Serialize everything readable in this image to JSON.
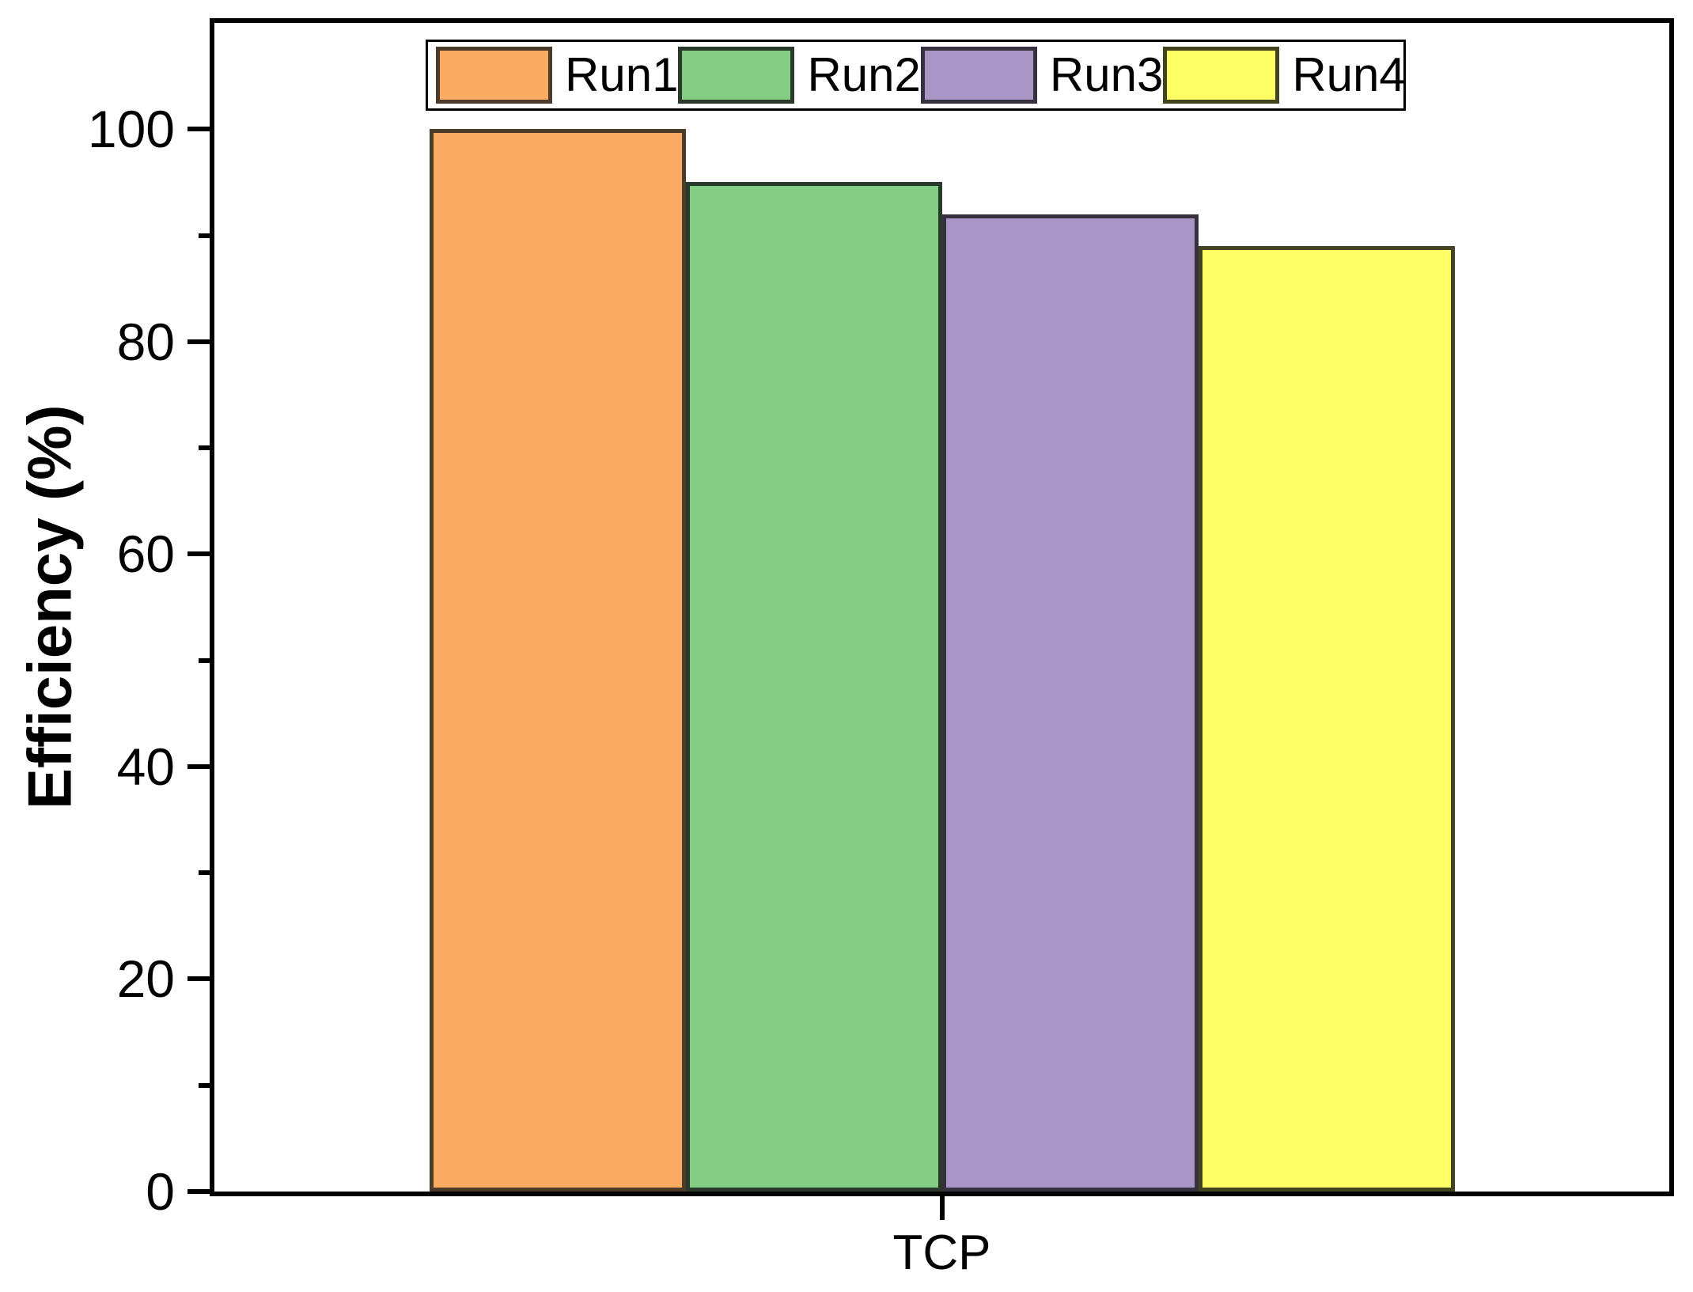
{
  "chart_data": {
    "type": "bar",
    "categories": [
      "TCP"
    ],
    "series": [
      {
        "name": "Run1",
        "values": [
          100
        ],
        "fill": "#FBAC62",
        "edge": "#4D3B2A"
      },
      {
        "name": "Run2",
        "values": [
          95
        ],
        "fill": "#84CB84",
        "edge": "#2A3A2A"
      },
      {
        "name": "Run3",
        "values": [
          92
        ],
        "fill": "#A996C7",
        "edge": "#37303F"
      },
      {
        "name": "Run4",
        "values": [
          89
        ],
        "fill": "#FDFD66",
        "edge": "#43431F"
      }
    ],
    "title": "",
    "xlabel": "TCP",
    "ylabel": "Efficiency (%)",
    "ylim": [
      0,
      110
    ],
    "yticks_major": [
      0,
      20,
      40,
      60,
      80,
      100
    ],
    "yticks_minor": [
      10,
      30,
      50,
      70,
      90
    ],
    "grid": false,
    "legend_position": "top-center",
    "axis_color": "#000000",
    "background_color": "#FFFFFF"
  }
}
